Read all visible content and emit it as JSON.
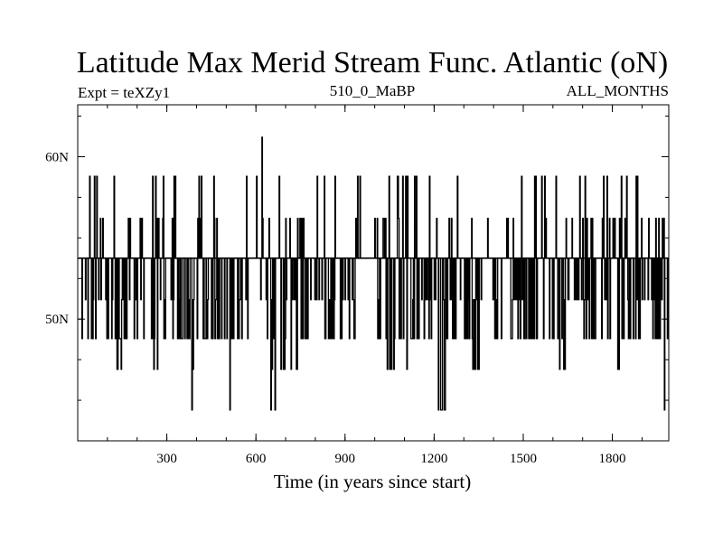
{
  "chart_data": {
    "type": "line",
    "title": "Latitude Max Merid Stream Func. Atlantic (oN)",
    "subtitle_left": "Expt = teXZy1",
    "subtitle_center": "510_0_MaBP",
    "subtitle_right": "ALL_MONTHS",
    "xlabel": "Time (in years since start)",
    "ylabel": "",
    "xlim": [
      0,
      1990
    ],
    "ylim": [
      42.5,
      63.2
    ],
    "x_ticks": [
      {
        "value": 300,
        "label": "300"
      },
      {
        "value": 600,
        "label": "600"
      },
      {
        "value": 900,
        "label": "900"
      },
      {
        "value": 1200,
        "label": "1200"
      },
      {
        "value": 1500,
        "label": "1500"
      },
      {
        "value": 1800,
        "label": "1800"
      }
    ],
    "y_ticks": [
      {
        "value": 50,
        "label": "50N"
      },
      {
        "value": 60,
        "label": "60N"
      }
    ],
    "x_minor_step": 100,
    "y_minor_step": 2.5,
    "grid": false,
    "baseline_value": 53.75,
    "levels": [
      44.4,
      46.9,
      48.8,
      51.2,
      53.75,
      56.2,
      58.8,
      61.2
    ],
    "series": [
      {
        "values_description": "",
        "segments": [
          {
            "x0": 0,
            "x1": 10,
            "low": 48.8,
            "high": 56.2
          },
          {
            "x0": 10,
            "x1": 130,
            "low": 48.8,
            "high": 58.8
          },
          {
            "x0": 130,
            "x1": 150,
            "low": 46.9,
            "high": 53.75
          },
          {
            "x0": 150,
            "x1": 250,
            "low": 48.8,
            "high": 56.2
          },
          {
            "x0": 250,
            "x1": 290,
            "low": 46.9,
            "high": 58.8
          },
          {
            "x0": 290,
            "x1": 380,
            "low": 48.8,
            "high": 58.8
          },
          {
            "x0": 380,
            "x1": 400,
            "low": 44.4,
            "high": 53.75
          },
          {
            "x0": 400,
            "x1": 500,
            "low": 48.8,
            "high": 58.8
          },
          {
            "x0": 500,
            "x1": 520,
            "low": 44.4,
            "high": 58.8
          },
          {
            "x0": 520,
            "x1": 620,
            "low": 48.8,
            "high": 58.8
          },
          {
            "x0": 620,
            "x1": 640,
            "low": 48.8,
            "high": 61.2
          },
          {
            "x0": 640,
            "x1": 680,
            "low": 44.4,
            "high": 58.8
          },
          {
            "x0": 680,
            "x1": 740,
            "low": 46.9,
            "high": 56.2
          },
          {
            "x0": 740,
            "x1": 800,
            "low": 48.8,
            "high": 56.2
          },
          {
            "x0": 800,
            "x1": 830,
            "low": 51.2,
            "high": 58.8
          },
          {
            "x0": 830,
            "x1": 960,
            "low": 48.8,
            "high": 58.8
          },
          {
            "x0": 960,
            "x1": 1000,
            "low": 53.75,
            "high": 53.75
          },
          {
            "x0": 1000,
            "x1": 1040,
            "low": 48.8,
            "high": 56.2
          },
          {
            "x0": 1040,
            "x1": 1120,
            "low": 46.9,
            "high": 58.8
          },
          {
            "x0": 1120,
            "x1": 1210,
            "low": 48.8,
            "high": 58.8
          },
          {
            "x0": 1210,
            "x1": 1240,
            "low": 44.4,
            "high": 56.2
          },
          {
            "x0": 1240,
            "x1": 1330,
            "low": 48.8,
            "high": 58.8
          },
          {
            "x0": 1330,
            "x1": 1360,
            "low": 46.9,
            "high": 56.2
          },
          {
            "x0": 1360,
            "x1": 1470,
            "low": 48.8,
            "high": 58.8
          },
          {
            "x0": 1470,
            "x1": 1620,
            "low": 48.8,
            "high": 58.8
          },
          {
            "x0": 1620,
            "x1": 1650,
            "low": 46.9,
            "high": 56.2
          },
          {
            "x0": 1650,
            "x1": 1800,
            "low": 48.8,
            "high": 58.8
          },
          {
            "x0": 1800,
            "x1": 1830,
            "low": 44.4,
            "high": 56.2
          },
          {
            "x0": 1830,
            "x1": 1940,
            "low": 48.8,
            "high": 58.8
          },
          {
            "x0": 1940,
            "x1": 1975,
            "low": 48.8,
            "high": 56.2
          },
          {
            "x0": 1975,
            "x1": 1990,
            "low": 44.4,
            "high": 56.2
          }
        ]
      }
    ]
  },
  "colors": {
    "line": "#000000",
    "background": "#ffffff"
  }
}
